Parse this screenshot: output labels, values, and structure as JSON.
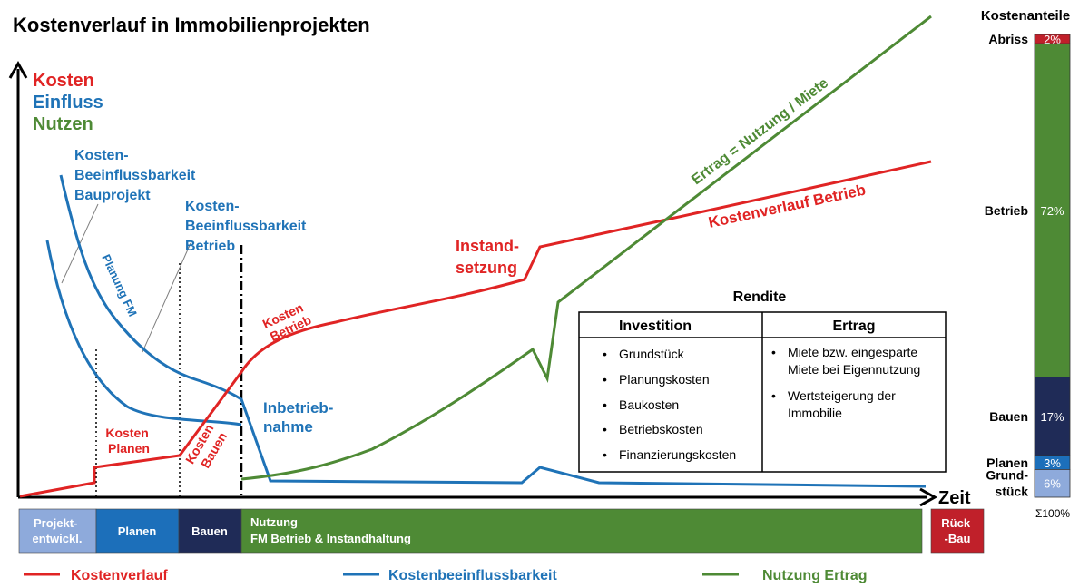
{
  "title": "Kostenverlauf in Immobilienprojekten",
  "colors": {
    "red": "#e02424",
    "blue": "#1f73b7",
    "green": "#4e8a35",
    "navy": "#1f2b57",
    "light_blue": "#8eaadb",
    "dark_red": "#c0202a",
    "mid_blue": "#1c6fba"
  },
  "y_axis_labels": {
    "kosten": "Kosten",
    "einfluss": "Einfluss",
    "nutzen": "Nutzen"
  },
  "x_axis_label": "Zeit",
  "annotations": {
    "kb_bauprojekt": [
      "Kosten-",
      "Beeinflussbarkeit",
      "Bauprojekt"
    ],
    "kb_betrieb": [
      "Kosten-",
      "Beeinflussbarkeit",
      "Betrieb"
    ],
    "planung_fm": "Planung FM",
    "kosten_planen": [
      "Kosten",
      "Planen"
    ],
    "kosten_bauen": [
      "Kosten",
      "Bauen"
    ],
    "kosten_betrieb": [
      "Kosten",
      "Betrieb"
    ],
    "inbetriebnahme": [
      "Inbetrieb-",
      "nahme"
    ],
    "instandsetzung": [
      "Instand-",
      "setzung"
    ],
    "ertrag_nutzung": "Ertrag = Nutzung / Miete",
    "kostenverlauf_betrieb": "Kostenverlauf Betrieb"
  },
  "rendite": {
    "title": "Rendite",
    "col1_header": "Investition",
    "col2_header": "Ertrag",
    "investition_items": [
      "Grundstück",
      "Planungskosten",
      "Baukosten",
      "Betriebskosten",
      "Finanzierungskosten"
    ],
    "ertrag_items": [
      [
        "Miete bzw. eingesparte",
        "Miete bei Eigennutzung"
      ],
      [
        "Wertsteigerung der",
        "Immobilie"
      ]
    ]
  },
  "phases": [
    {
      "lines": [
        "Projekt-",
        "entwickl."
      ],
      "color": "#8eaadb"
    },
    {
      "lines": [
        "Planen"
      ],
      "color": "#1c6fba"
    },
    {
      "lines": [
        "Bauen"
      ],
      "color": "#1f2b57"
    },
    {
      "lines": [
        "Nutzung",
        "FM Betrieb & Instandhaltung"
      ],
      "color": "#4e8a35"
    },
    {
      "lines": [
        "Rück",
        "-Bau"
      ],
      "color": "#c0202a"
    }
  ],
  "legend": [
    {
      "label": "Kostenverlauf",
      "color": "#e02424"
    },
    {
      "label": "Kostenbeeinflussbarkeit",
      "color": "#1f73b7"
    },
    {
      "label": "Nutzung Ertrag",
      "color": "#4e8a35"
    }
  ],
  "cost_shares": {
    "title": "Kostenanteile",
    "total": "Σ100%",
    "segments": [
      {
        "lines": [
          "Abriss"
        ],
        "value": 2,
        "label": "2%",
        "color": "#c0202a"
      },
      {
        "lines": [
          "Betrieb"
        ],
        "value": 72,
        "label": "72%",
        "color": "#4e8a35"
      },
      {
        "lines": [
          "Bauen"
        ],
        "value": 17,
        "label": "17%",
        "color": "#1f2b57"
      },
      {
        "lines": [
          "Planen"
        ],
        "value": 3,
        "label": "3%",
        "color": "#1c6fba"
      },
      {
        "lines": [
          "Grund-",
          "stück"
        ],
        "value": 6,
        "label": "6%",
        "color": "#8eaadb"
      }
    ]
  }
}
